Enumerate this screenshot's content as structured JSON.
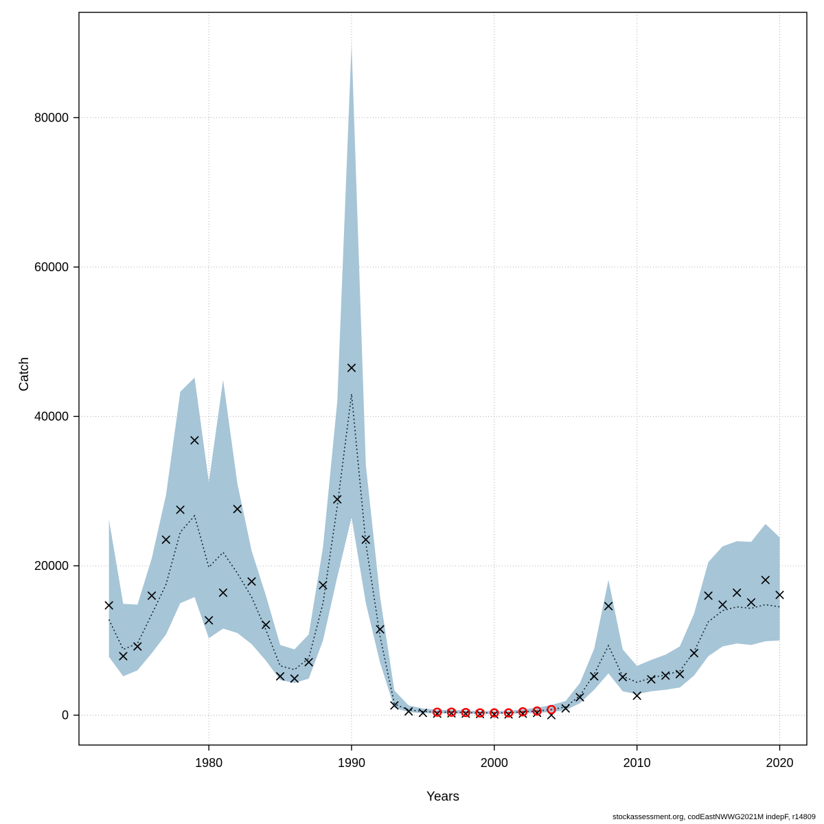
{
  "footer": {
    "text": "stockassessment.org, codEastNWWG2021M  indepF, r14809"
  },
  "chart_data": {
    "type": "area",
    "title": "",
    "xlabel": "Years",
    "ylabel": "Catch",
    "grid": true,
    "legend": "none",
    "x_ticks": [
      1980,
      1990,
      2000,
      2010,
      2020
    ],
    "y_ticks": [
      0,
      20000,
      40000,
      60000,
      80000
    ],
    "xlim": [
      1970.9,
      2021.9
    ],
    "ylim": [
      -4000,
      94100
    ],
    "band_color": "#a6c5d7",
    "line_color": "#10242e",
    "marker_color": "#000000",
    "highlight_color": "#f00000",
    "grid_color": "#aaaaaa",
    "years": [
      1973,
      1974,
      1975,
      1976,
      1977,
      1978,
      1979,
      1980,
      1981,
      1982,
      1983,
      1984,
      1985,
      1986,
      1987,
      1988,
      1989,
      1990,
      1991,
      1992,
      1993,
      1994,
      1995,
      1996,
      1997,
      1998,
      1999,
      2000,
      2001,
      2002,
      2003,
      2004,
      2005,
      2006,
      2007,
      2008,
      2009,
      2010,
      2011,
      2012,
      2013,
      2014,
      2015,
      2016,
      2017,
      2018,
      2019,
      2020
    ],
    "observed": [
      14700,
      7900,
      9200,
      16000,
      23500,
      27500,
      36800,
      12700,
      16400,
      27600,
      17900,
      12100,
      5200,
      4900,
      7100,
      17400,
      28900,
      46500,
      23500,
      11500,
      1300,
      500,
      300,
      200,
      250,
      200,
      150,
      100,
      100,
      200,
      300,
      0,
      900,
      2400,
      5200,
      14600,
      5100,
      2600,
      4800,
      5300,
      5500,
      8300,
      16000,
      14800,
      16400,
      15100,
      18100,
      16100
    ],
    "estimate": [
      12800,
      8800,
      9600,
      13500,
      17500,
      24500,
      26700,
      19800,
      21800,
      19000,
      15800,
      11400,
      6600,
      6100,
      7600,
      15000,
      28000,
      43000,
      23000,
      10500,
      1500,
      700,
      500,
      400,
      400,
      350,
      300,
      300,
      300,
      450,
      550,
      750,
      1100,
      2600,
      5500,
      9300,
      5200,
      4400,
      5000,
      5400,
      5900,
      8500,
      12500,
      14000,
      14500,
      14300,
      14800,
      14500
    ],
    "lower": [
      7800,
      5200,
      6000,
      8300,
      10800,
      15000,
      15800,
      10300,
      11600,
      11000,
      9500,
      7300,
      4700,
      4300,
      4900,
      10000,
      18500,
      26500,
      15000,
      7000,
      1000,
      400,
      280,
      220,
      220,
      200,
      170,
      170,
      170,
      250,
      300,
      420,
      650,
      1600,
      3400,
      5600,
      3200,
      2800,
      3200,
      3400,
      3700,
      5300,
      7900,
      9200,
      9600,
      9400,
      9900,
      10000
    ],
    "upper": [
      26200,
      14900,
      14800,
      21000,
      29500,
      43300,
      45200,
      31200,
      44900,
      31000,
      22000,
      16000,
      9400,
      8800,
      10800,
      22500,
      42000,
      90000,
      33500,
      15800,
      3300,
      1300,
      900,
      700,
      700,
      620,
      550,
      550,
      550,
      800,
      1000,
      1350,
      1900,
      4300,
      8900,
      18100,
      8800,
      6600,
      7400,
      8100,
      9200,
      13600,
      20500,
      22600,
      23300,
      23200,
      25600,
      23800
    ],
    "highlight_years": [
      1996,
      1997,
      1998,
      1999,
      2000,
      2001,
      2002,
      2003,
      2004
    ],
    "highlight_values": [
      400,
      400,
      350,
      300,
      300,
      300,
      450,
      550,
      750
    ]
  }
}
